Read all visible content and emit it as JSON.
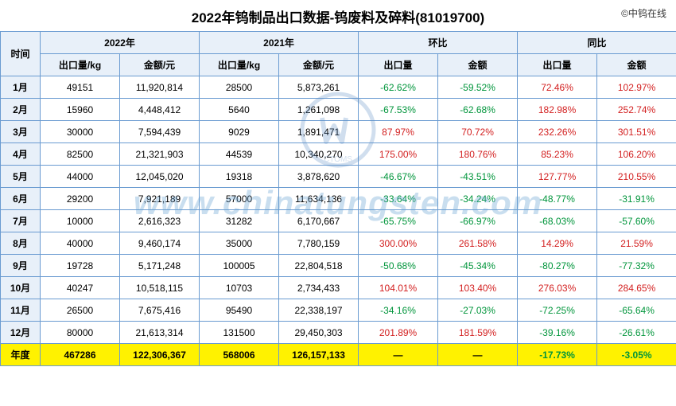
{
  "title": "2022年钨制品出口数据-钨废料及碎料(81019700)",
  "copyright": "©中钨在线",
  "watermark_text": "www.chinatungsten.com",
  "header": {
    "time": "时间",
    "y2022": "2022年",
    "y2021": "2021年",
    "mom": "环比",
    "yoy": "同比",
    "export_qty": "出口量/kg",
    "amount": "金额/元",
    "export_qty_short": "出口量",
    "amount_short": "金额"
  },
  "rows": [
    {
      "label": "1月",
      "qty2022": "49151",
      "amt2022": "11,920,814",
      "qty2021": "28500",
      "amt2021": "5,873,261",
      "mom_qty": {
        "v": "-62.62%",
        "s": -1
      },
      "mom_amt": {
        "v": "-59.52%",
        "s": -1
      },
      "yoy_qty": {
        "v": "72.46%",
        "s": 1
      },
      "yoy_amt": {
        "v": "102.97%",
        "s": 1
      }
    },
    {
      "label": "2月",
      "qty2022": "15960",
      "amt2022": "4,448,412",
      "qty2021": "5640",
      "amt2021": "1,261,098",
      "mom_qty": {
        "v": "-67.53%",
        "s": -1
      },
      "mom_amt": {
        "v": "-62.68%",
        "s": -1
      },
      "yoy_qty": {
        "v": "182.98%",
        "s": 1
      },
      "yoy_amt": {
        "v": "252.74%",
        "s": 1
      }
    },
    {
      "label": "3月",
      "qty2022": "30000",
      "amt2022": "7,594,439",
      "qty2021": "9029",
      "amt2021": "1,891,471",
      "mom_qty": {
        "v": "87.97%",
        "s": 1
      },
      "mom_amt": {
        "v": "70.72%",
        "s": 1
      },
      "yoy_qty": {
        "v": "232.26%",
        "s": 1
      },
      "yoy_amt": {
        "v": "301.51%",
        "s": 1
      }
    },
    {
      "label": "4月",
      "qty2022": "82500",
      "amt2022": "21,321,903",
      "qty2021": "44539",
      "amt2021": "10,340,270",
      "mom_qty": {
        "v": "175.00%",
        "s": 1
      },
      "mom_amt": {
        "v": "180.76%",
        "s": 1
      },
      "yoy_qty": {
        "v": "85.23%",
        "s": 1
      },
      "yoy_amt": {
        "v": "106.20%",
        "s": 1
      }
    },
    {
      "label": "5月",
      "qty2022": "44000",
      "amt2022": "12,045,020",
      "qty2021": "19318",
      "amt2021": "3,878,620",
      "mom_qty": {
        "v": "-46.67%",
        "s": -1
      },
      "mom_amt": {
        "v": "-43.51%",
        "s": -1
      },
      "yoy_qty": {
        "v": "127.77%",
        "s": 1
      },
      "yoy_amt": {
        "v": "210.55%",
        "s": 1
      }
    },
    {
      "label": "6月",
      "qty2022": "29200",
      "amt2022": "7,921,189",
      "qty2021": "57000",
      "amt2021": "11,634,136",
      "mom_qty": {
        "v": "-33.64%",
        "s": -1
      },
      "mom_amt": {
        "v": "-34.24%",
        "s": -1
      },
      "yoy_qty": {
        "v": "-48.77%",
        "s": -1
      },
      "yoy_amt": {
        "v": "-31.91%",
        "s": -1
      }
    },
    {
      "label": "7月",
      "qty2022": "10000",
      "amt2022": "2,616,323",
      "qty2021": "31282",
      "amt2021": "6,170,667",
      "mom_qty": {
        "v": "-65.75%",
        "s": -1
      },
      "mom_amt": {
        "v": "-66.97%",
        "s": -1
      },
      "yoy_qty": {
        "v": "-68.03%",
        "s": -1
      },
      "yoy_amt": {
        "v": "-57.60%",
        "s": -1
      }
    },
    {
      "label": "8月",
      "qty2022": "40000",
      "amt2022": "9,460,174",
      "qty2021": "35000",
      "amt2021": "7,780,159",
      "mom_qty": {
        "v": "300.00%",
        "s": 1
      },
      "mom_amt": {
        "v": "261.58%",
        "s": 1
      },
      "yoy_qty": {
        "v": "14.29%",
        "s": 1
      },
      "yoy_amt": {
        "v": "21.59%",
        "s": 1
      }
    },
    {
      "label": "9月",
      "qty2022": "19728",
      "amt2022": "5,171,248",
      "qty2021": "100005",
      "amt2021": "22,804,518",
      "mom_qty": {
        "v": "-50.68%",
        "s": -1
      },
      "mom_amt": {
        "v": "-45.34%",
        "s": -1
      },
      "yoy_qty": {
        "v": "-80.27%",
        "s": -1
      },
      "yoy_amt": {
        "v": "-77.32%",
        "s": -1
      }
    },
    {
      "label": "10月",
      "qty2022": "40247",
      "amt2022": "10,518,115",
      "qty2021": "10703",
      "amt2021": "2,734,433",
      "mom_qty": {
        "v": "104.01%",
        "s": 1
      },
      "mom_amt": {
        "v": "103.40%",
        "s": 1
      },
      "yoy_qty": {
        "v": "276.03%",
        "s": 1
      },
      "yoy_amt": {
        "v": "284.65%",
        "s": 1
      }
    },
    {
      "label": "11月",
      "qty2022": "26500",
      "amt2022": "7,675,416",
      "qty2021": "95490",
      "amt2021": "22,338,197",
      "mom_qty": {
        "v": "-34.16%",
        "s": -1
      },
      "mom_amt": {
        "v": "-27.03%",
        "s": -1
      },
      "yoy_qty": {
        "v": "-72.25%",
        "s": -1
      },
      "yoy_amt": {
        "v": "-65.64%",
        "s": -1
      }
    },
    {
      "label": "12月",
      "qty2022": "80000",
      "amt2022": "21,613,314",
      "qty2021": "131500",
      "amt2021": "29,450,303",
      "mom_qty": {
        "v": "201.89%",
        "s": 1
      },
      "mom_amt": {
        "v": "181.59%",
        "s": 1
      },
      "yoy_qty": {
        "v": "-39.16%",
        "s": -1
      },
      "yoy_amt": {
        "v": "-26.61%",
        "s": -1
      }
    }
  ],
  "annual": {
    "label": "年度",
    "qty2022": "467286",
    "amt2022": "122,306,367",
    "qty2021": "568006",
    "amt2021": "126,157,133",
    "mom_qty": "—",
    "mom_amt": "—",
    "yoy_qty": {
      "v": "-17.73%",
      "s": -1
    },
    "yoy_amt": {
      "v": "-3.05%",
      "s": -1
    }
  },
  "colors": {
    "header_bg": "#e8f0f9",
    "border": "#6a9bd1",
    "positive": "#d32020",
    "negative": "#00953b",
    "annual_bg": "#fff200",
    "watermark": "rgba(100,160,210,0.35)"
  }
}
